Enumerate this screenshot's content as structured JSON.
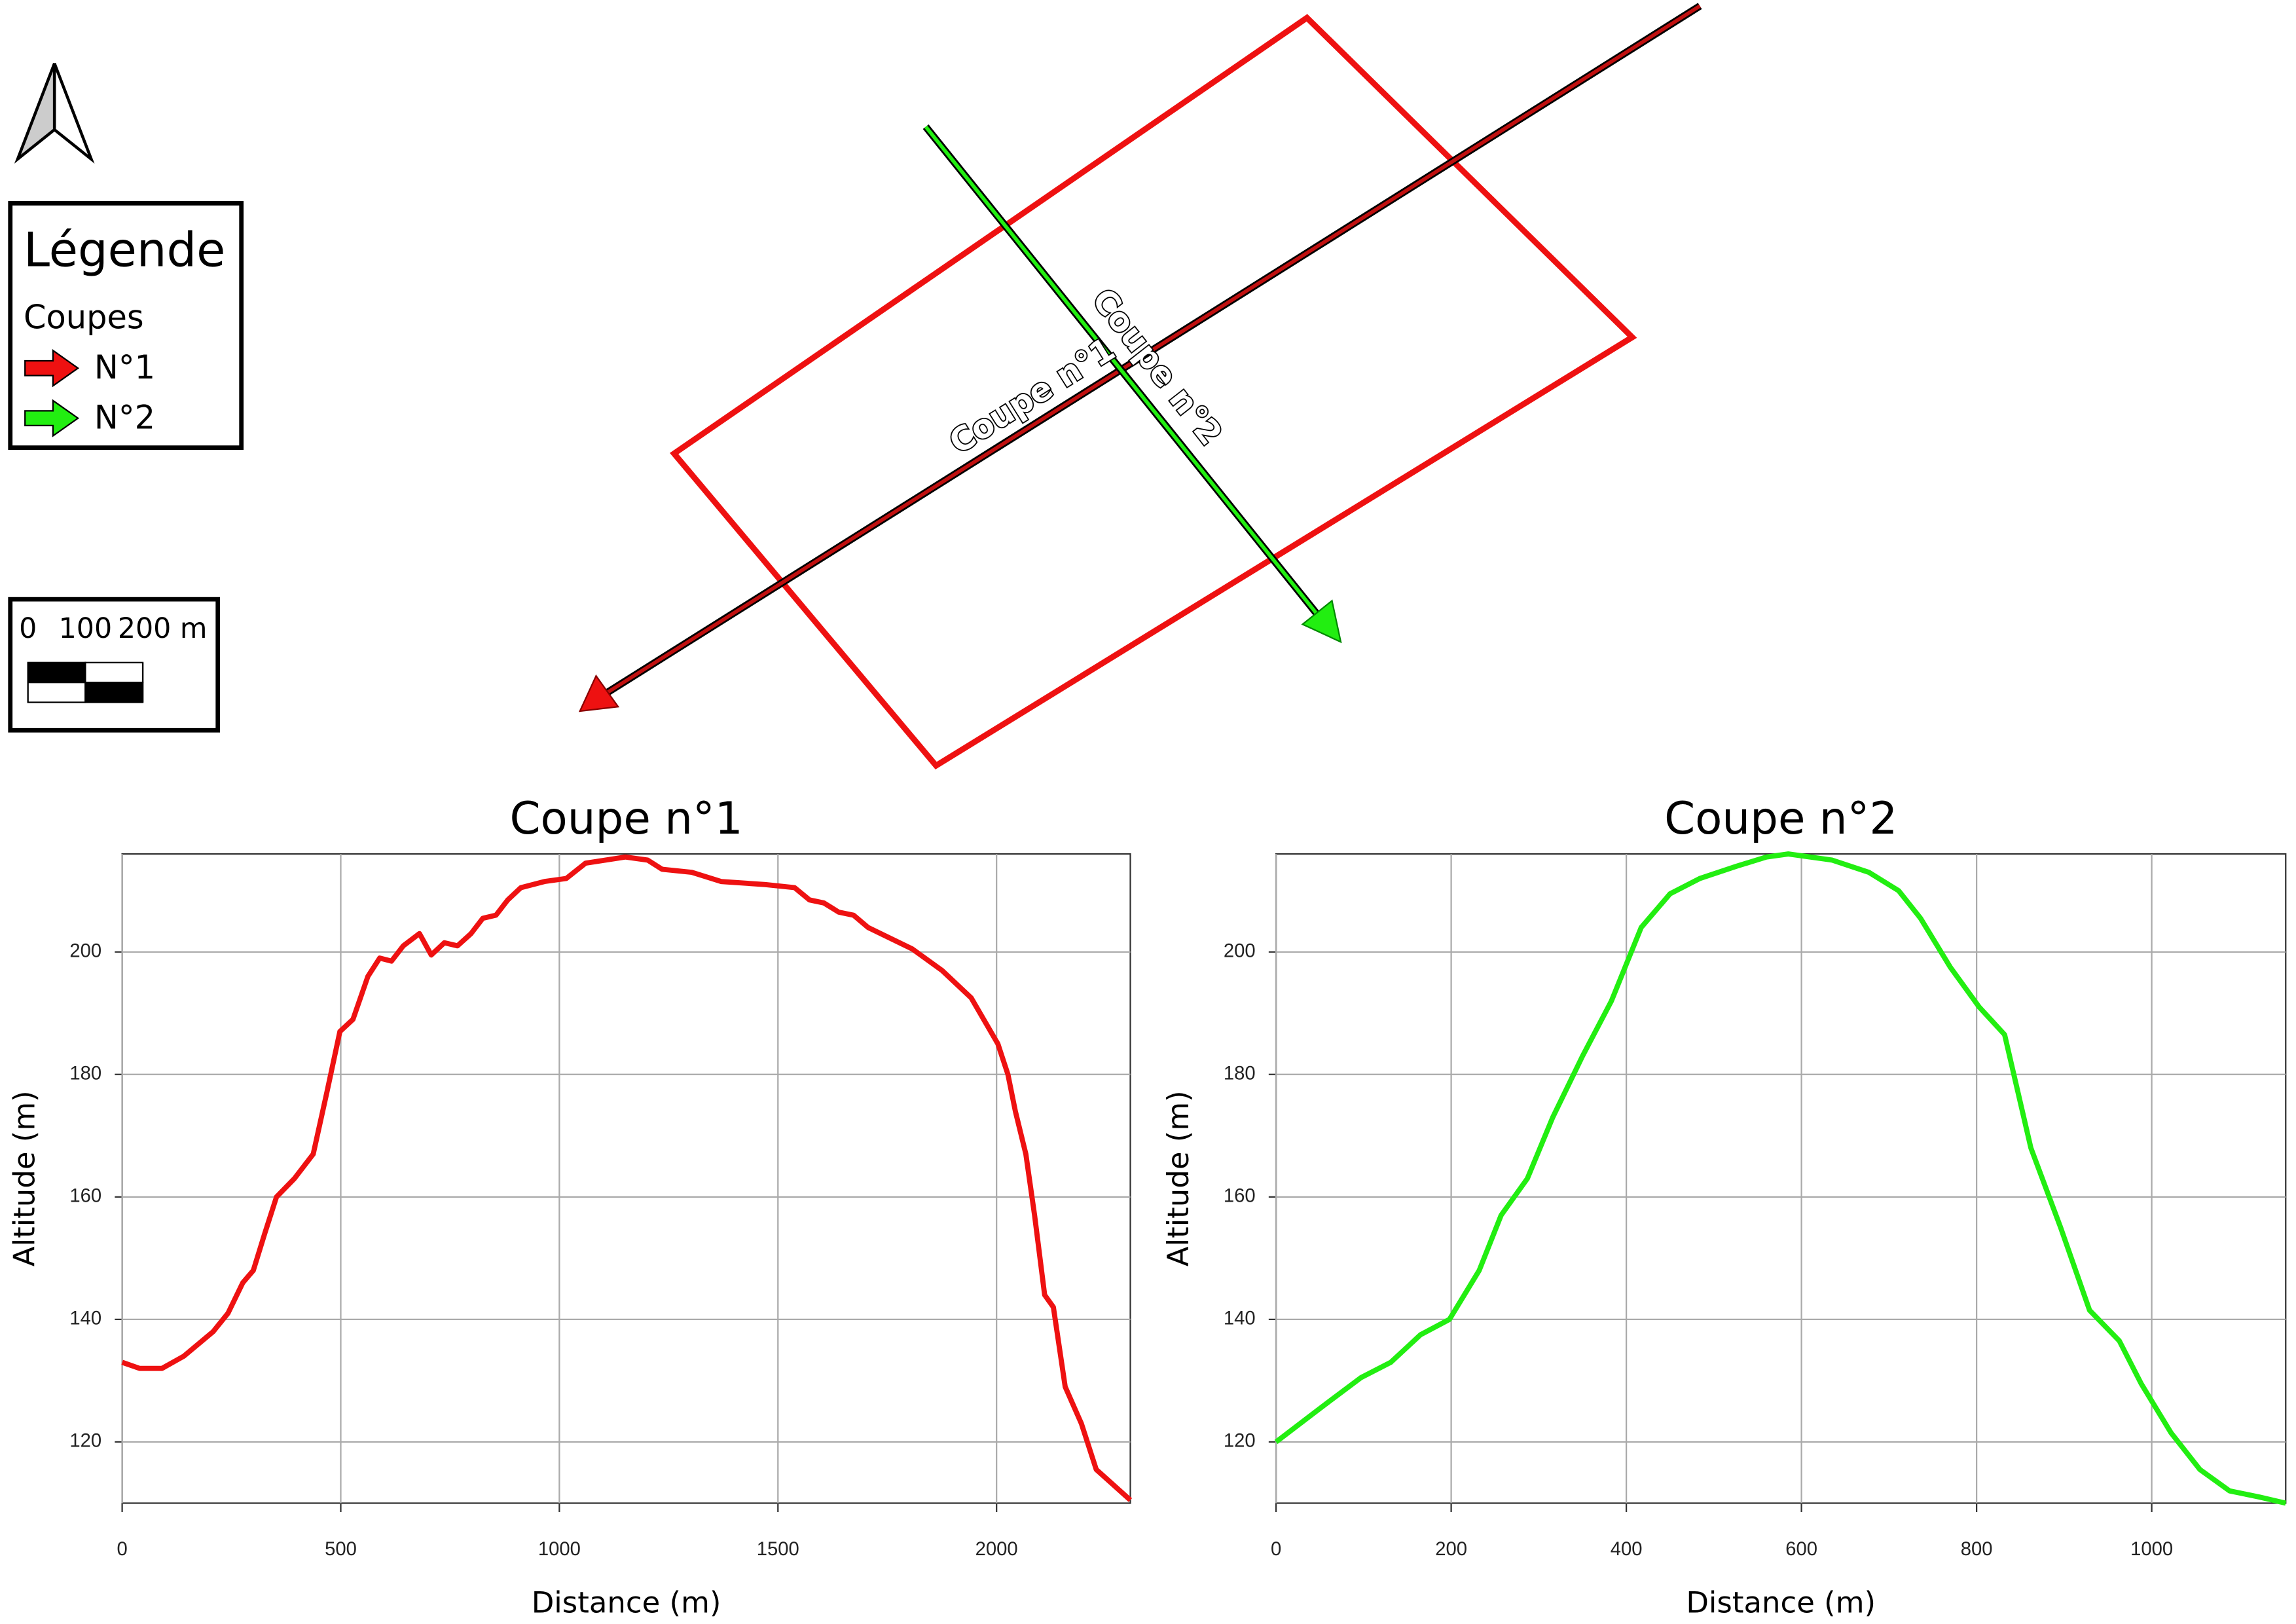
{
  "legend": {
    "title": "Légende",
    "group": "Coupes",
    "items": [
      "N°1",
      "N°2"
    ]
  },
  "scale_bar": {
    "ticks": [
      0,
      100,
      {
        "value": 200,
        "label": "200 m"
      }
    ]
  },
  "map_labels": [
    "Coupe n°1",
    "Coupe n°2"
  ],
  "chart_data": [
    {
      "type": "line",
      "title": "Coupe n°1",
      "x_label": "Distance (m)",
      "y_label": "Altitude (m)",
      "color": "#ee1111",
      "grid": true,
      "x": [
        0,
        40,
        91,
        141,
        208,
        242,
        276,
        300,
        326,
        353,
        394,
        437,
        468,
        498,
        528,
        562,
        589,
        616,
        643,
        680,
        707,
        737,
        767,
        798,
        825,
        855,
        882,
        912,
        966,
        1016,
        1060,
        1151,
        1202,
        1235,
        1303,
        1370,
        1471,
        1538,
        1572,
        1605,
        1639,
        1673,
        1706,
        1807,
        1875,
        1942,
        2003,
        2026,
        2043,
        2067,
        2087,
        2110,
        2130,
        2157,
        2194,
        2228,
        2306
      ],
      "values": [
        133,
        132,
        132,
        134,
        138,
        141,
        146,
        148,
        154,
        160,
        163,
        167,
        177,
        187,
        189,
        196,
        199,
        198.5,
        201,
        203,
        199.5,
        201.5,
        201,
        203,
        205.5,
        206,
        208.5,
        210.5,
        211.5,
        212,
        214.5,
        215.5,
        215,
        213.5,
        213,
        211.5,
        211,
        210.5,
        208.5,
        208,
        206.5,
        206,
        204,
        200.5,
        197,
        192.5,
        185,
        180,
        174,
        167,
        157,
        144,
        142,
        129,
        123,
        115.5,
        110.5
      ],
      "xlim": [
        0,
        2306
      ],
      "xticks": [
        0,
        500,
        1000,
        1500,
        2000
      ],
      "ylim": [
        110,
        216
      ],
      "yticks": [
        120,
        140,
        160,
        180,
        200
      ]
    },
    {
      "type": "line",
      "title": "Coupe n°2",
      "x_label": "Distance (m)",
      "y_label": "Altitude (m)",
      "color": "#22ee11",
      "grid": true,
      "x": [
        0,
        55,
        97,
        131,
        165,
        198,
        232,
        257,
        287,
        316,
        350,
        383,
        417,
        450,
        484,
        526,
        560,
        585,
        635,
        677,
        711,
        736,
        770,
        803,
        832,
        862,
        896,
        929,
        963,
        988,
        1022,
        1055,
        1089,
        1123,
        1153
      ],
      "values": [
        120,
        126,
        130.5,
        133,
        137.5,
        140,
        148,
        157,
        163,
        173,
        183,
        192,
        204,
        209.5,
        212,
        214,
        215.5,
        216,
        215,
        213,
        210,
        205.5,
        197.5,
        191,
        186.5,
        168,
        155,
        141.5,
        136.5,
        129.5,
        121.5,
        115.5,
        112,
        111,
        110
      ],
      "xlim": [
        0,
        1153
      ],
      "xticks": [
        0,
        200,
        400,
        600,
        800,
        1000
      ],
      "ylim": [
        110,
        216
      ],
      "yticks": [
        120,
        140,
        160,
        180,
        200
      ]
    }
  ]
}
